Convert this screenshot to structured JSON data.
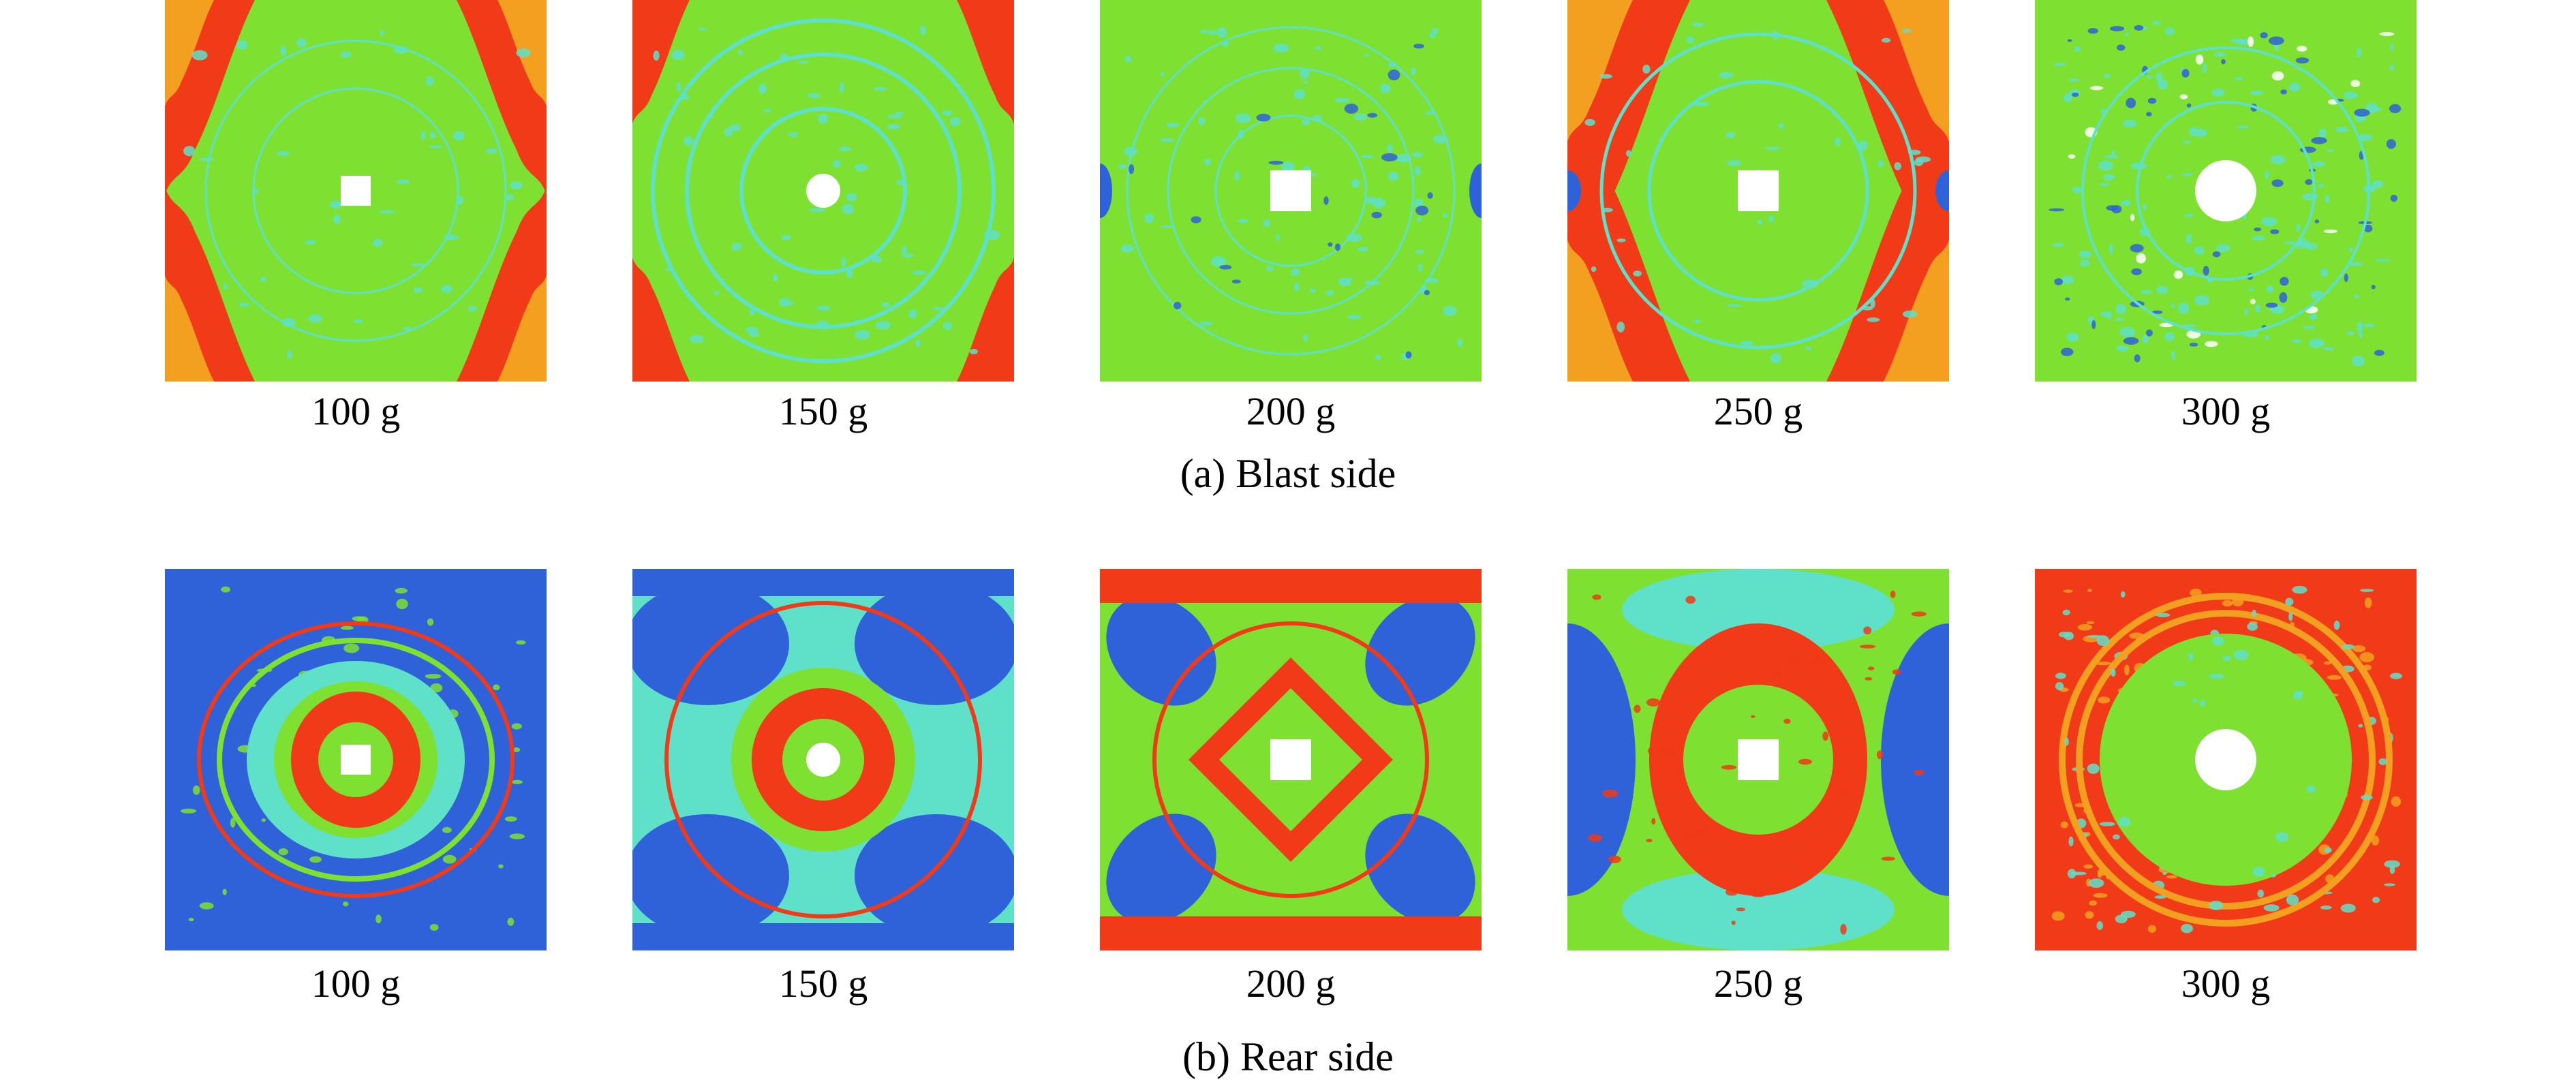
{
  "figure": {
    "rows": [
      {
        "id": "blast",
        "caption": "(a) Blast side",
        "panels": [
          {
            "label": "100 g",
            "pattern": "blast-100"
          },
          {
            "label": "150 g",
            "pattern": "blast-150"
          },
          {
            "label": "200 g",
            "pattern": "blast-200"
          },
          {
            "label": "250 g",
            "pattern": "blast-250"
          },
          {
            "label": "300 g",
            "pattern": "blast-300"
          }
        ]
      },
      {
        "id": "rear",
        "caption": "(b) Rear side",
        "panels": [
          {
            "label": "100 g",
            "pattern": "rear-100"
          },
          {
            "label": "150 g",
            "pattern": "rear-150"
          },
          {
            "label": "200 g",
            "pattern": "rear-200"
          },
          {
            "label": "250 g",
            "pattern": "rear-250"
          },
          {
            "label": "300 g",
            "pattern": "rear-300"
          }
        ]
      }
    ],
    "colors": {
      "green": "#7ee030",
      "cyan": "#5fe0c8",
      "blue": "#2f62d8",
      "red": "#f03a18",
      "orange": "#f3a020",
      "yellow": "#e8e030",
      "hole": "#ffffff"
    }
  }
}
